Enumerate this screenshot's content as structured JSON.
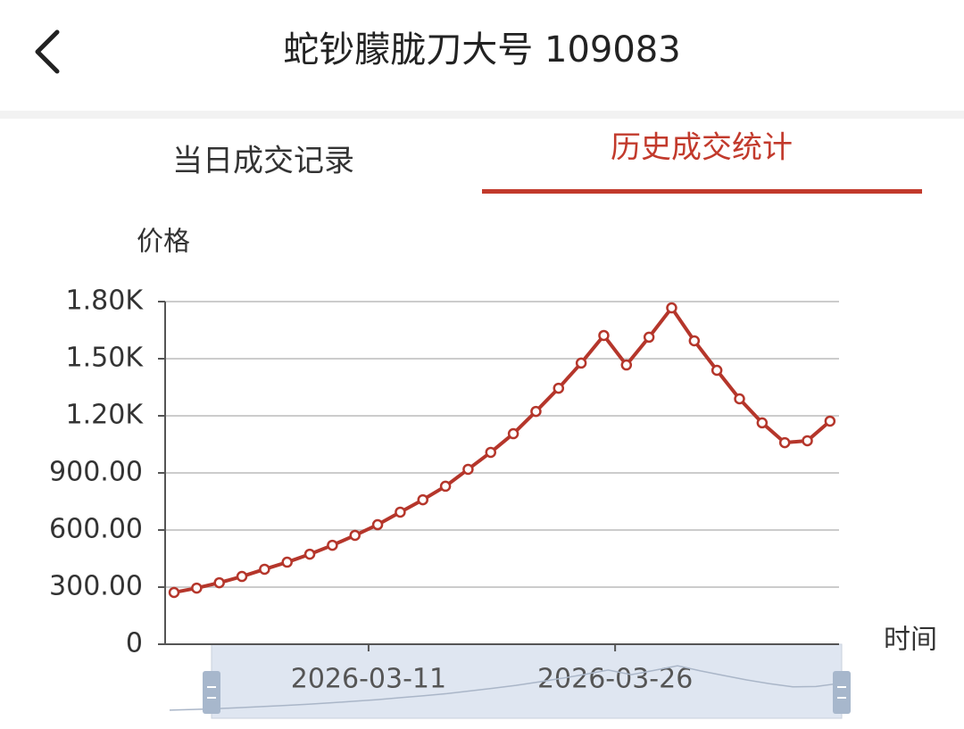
{
  "header": {
    "title": "蛇钞朦胧刀大号 109083"
  },
  "tabs": [
    "当日成交记录",
    "历史成交统计"
  ],
  "chart_data": {
    "type": "line",
    "ylabel": "价格",
    "xlabel": "时间",
    "categories": [
      null,
      null,
      null,
      null,
      null,
      null,
      null,
      null,
      null,
      null,
      null,
      null,
      null,
      null,
      null,
      null,
      null,
      null,
      null,
      null,
      null,
      null,
      null,
      null,
      null,
      null,
      null,
      null,
      null,
      null
    ],
    "values": [
      272,
      295,
      323,
      356,
      394,
      431,
      473,
      520,
      572,
      628,
      694,
      759,
      830,
      919,
      1008,
      1106,
      1223,
      1345,
      1477,
      1622,
      1467,
      1613,
      1767,
      1594,
      1439,
      1289,
      1163,
      1059,
      1069,
      1172
    ],
    "xticks": [
      {
        "value": 8.6,
        "label": "2026-03-11"
      },
      {
        "value": 19.5,
        "label": "2026-03-26"
      }
    ],
    "ylim": [
      0,
      1800
    ],
    "yticks": [
      0,
      {
        "value": 300,
        "label": "300.00"
      },
      {
        "value": 600,
        "label": "600.00"
      },
      {
        "value": 900,
        "label": "900.00"
      },
      {
        "value": 1200,
        "label": "1.20K"
      },
      {
        "value": 1500,
        "label": "1.50K"
      },
      {
        "value": 1800,
        "label": "1.80K"
      }
    ],
    "color": "#b5362b",
    "grid": true
  }
}
